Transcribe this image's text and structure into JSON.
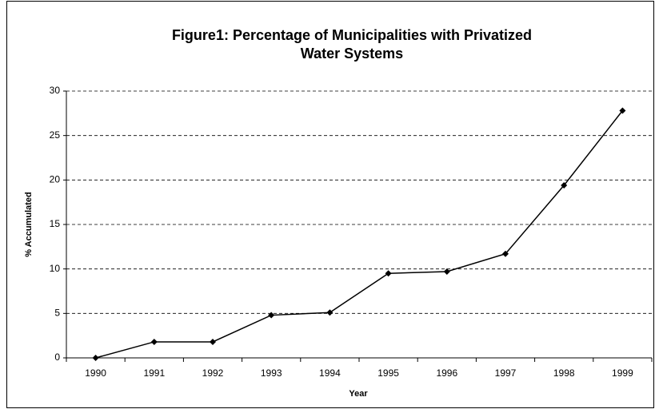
{
  "chart_data": {
    "type": "line",
    "title": [
      "Figure1: Percentage of Municipalities with Privatized",
      "Water Systems"
    ],
    "x_label": "Year",
    "y_label": "% Accumulated",
    "categories": [
      "1990",
      "1991",
      "1992",
      "1993",
      "1994",
      "1995",
      "1996",
      "1997",
      "1998",
      "1999"
    ],
    "values": [
      0,
      1.8,
      1.8,
      4.8,
      5.1,
      9.5,
      9.7,
      11.7,
      19.4,
      27.8
    ],
    "color": "#000000",
    "ylim": [
      0,
      30
    ],
    "yticks": [
      0,
      5,
      10,
      15,
      20,
      25,
      30
    ],
    "grid": true
  }
}
